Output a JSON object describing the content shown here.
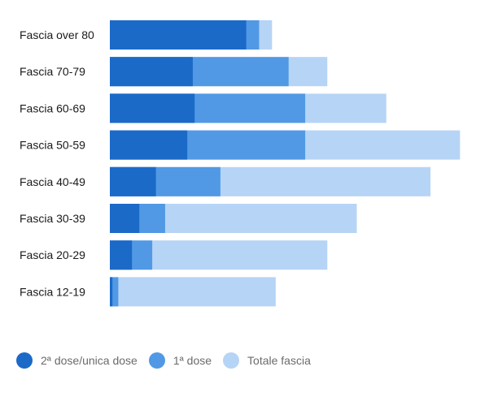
{
  "chart_data": {
    "type": "bar",
    "orientation": "horizontal",
    "stacked": "overlay",
    "categories": [
      "Fascia over 80",
      "Fascia 70-79",
      "Fascia 60-69",
      "Fascia 50-59",
      "Fascia 40-49",
      "Fascia 30-39",
      "Fascia 20-29",
      "Fascia 12-19"
    ],
    "series": [
      {
        "name": "Totale fascia",
        "color": "#b6d4f5",
        "values": [
          4.4,
          5.9,
          7.5,
          9.5,
          8.7,
          6.7,
          5.9,
          4.5
        ]
      },
      {
        "name": "1ª dose",
        "color": "#5199e4",
        "values": [
          4.05,
          4.85,
          5.3,
          5.3,
          3.0,
          1.5,
          1.15,
          0.23
        ]
      },
      {
        "name": "2ª dose/unica dose",
        "color": "#1b6ac8",
        "values": [
          3.7,
          2.25,
          2.3,
          2.1,
          1.25,
          0.8,
          0.6,
          0.07
        ]
      }
    ],
    "xlim": [
      0,
      10
    ],
    "legend_position": "bottom-left",
    "grid": false
  },
  "legend": [
    {
      "label": "2ª dose/unica dose",
      "color": "#1b6ac8"
    },
    {
      "label": "1ª dose",
      "color": "#5199e4"
    },
    {
      "label": "Totale fascia",
      "color": "#b6d4f5"
    }
  ]
}
